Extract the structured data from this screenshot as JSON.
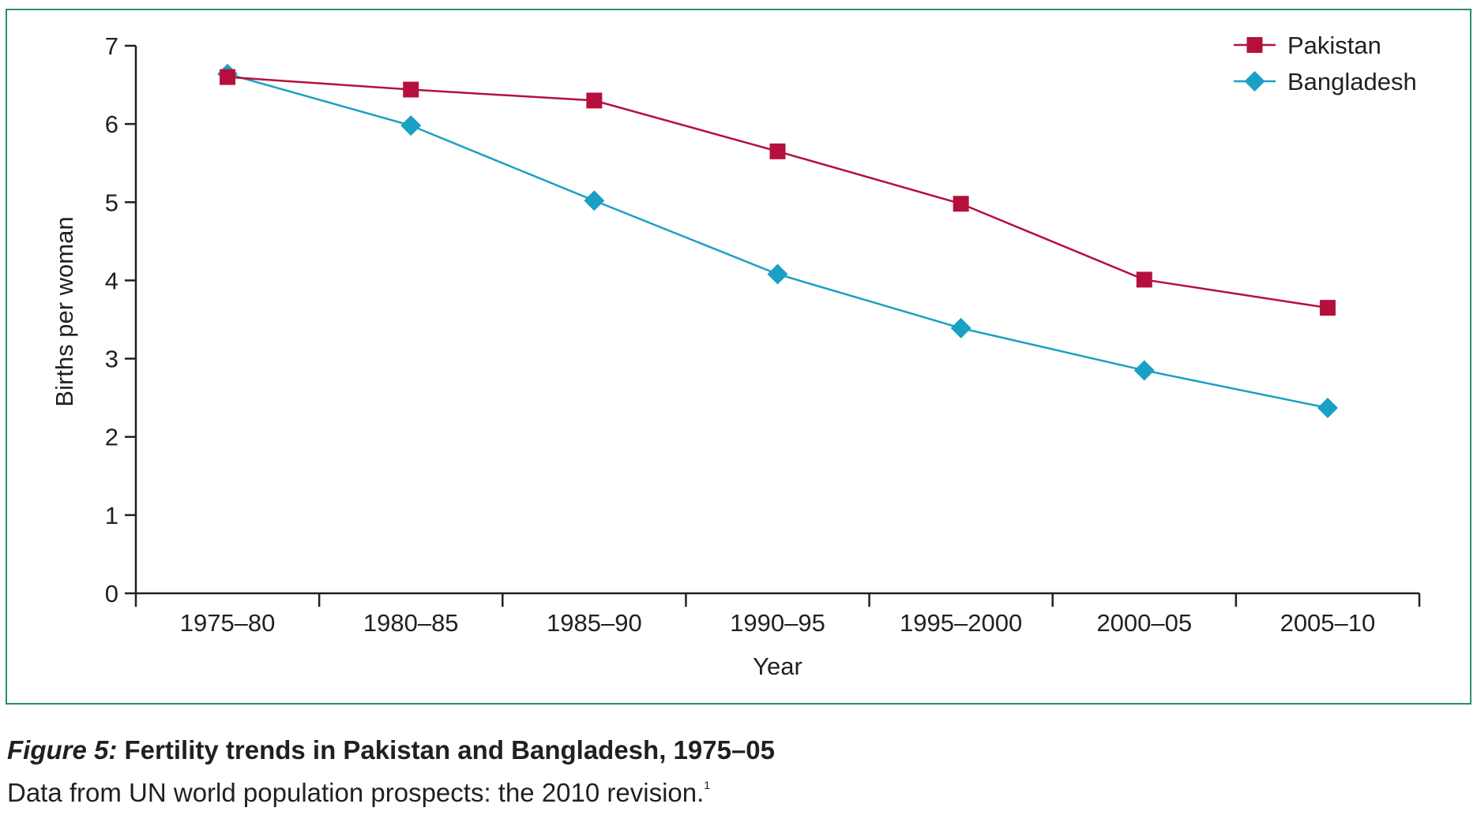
{
  "caption": {
    "figure_label": "Figure 5:",
    "title": " Fertility trends in Pakistan and Bangladesh, 1975–05"
  },
  "source": {
    "text": "Data from UN world population prospects: the 2010 revision.",
    "reference": "1"
  },
  "chart_data": {
    "type": "line",
    "xlabel": "Year",
    "ylabel": "Births per woman",
    "ylim": [
      0,
      7
    ],
    "yticks": [
      0,
      1,
      2,
      3,
      4,
      5,
      6,
      7
    ],
    "categories": [
      "1975–80",
      "1980–85",
      "1985–90",
      "1990–95",
      "1995–2000",
      "2000–05",
      "2005–10"
    ],
    "grid": false,
    "legend_position": "top-right",
    "series": [
      {
        "name": "Pakistan",
        "marker": "square",
        "color": "#b5103c",
        "values": [
          6.6,
          6.44,
          6.3,
          5.65,
          4.98,
          4.01,
          3.65
        ]
      },
      {
        "name": "Bangladesh",
        "marker": "diamond",
        "color": "#1aa0c4",
        "values": [
          6.64,
          5.98,
          5.02,
          4.08,
          3.39,
          2.85,
          2.37
        ]
      }
    ]
  }
}
